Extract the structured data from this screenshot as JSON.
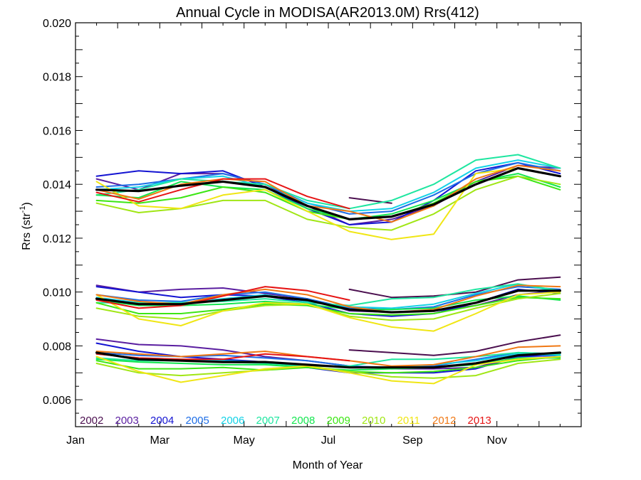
{
  "chart_data": {
    "type": "line",
    "title": "Annual Cycle in MODISA(AR2013.0M) Rrs(412)",
    "xlabel": "Month of Year",
    "ylabel_base": "Rrs (str",
    "ylabel_sup": "-1",
    "ylabel_end": ")",
    "xlim": [
      0,
      12
    ],
    "ylim": [
      0.005,
      0.02
    ],
    "x_ticks": [
      {
        "value": 0,
        "label": "Jan"
      },
      {
        "value": 2,
        "label": "Mar"
      },
      {
        "value": 4,
        "label": "May"
      },
      {
        "value": 6,
        "label": "Jul"
      },
      {
        "value": 8,
        "label": "Sep"
      },
      {
        "value": 10,
        "label": "Nov"
      }
    ],
    "y_ticks": [
      {
        "value": 0.006,
        "label": "0.006"
      },
      {
        "value": 0.008,
        "label": "0.008"
      },
      {
        "value": 0.01,
        "label": "0.010"
      },
      {
        "value": 0.012,
        "label": "0.012"
      },
      {
        "value": 0.014,
        "label": "0.014"
      },
      {
        "value": 0.016,
        "label": "0.016"
      },
      {
        "value": 0.018,
        "label": "0.018"
      },
      {
        "value": 0.02,
        "label": "0.020"
      }
    ],
    "months": [
      0.5,
      1.5,
      2.5,
      3.5,
      4.5,
      5.5,
      6.5,
      7.5,
      8.5,
      9.5,
      10.5,
      11.5
    ],
    "legend_position": "bottom-left",
    "series": [
      {
        "name": "2002",
        "color": "#4b0f4f",
        "groups": [
          [
            null,
            null,
            null,
            null,
            null,
            null,
            0.0135,
            0.0133,
            null,
            null,
            null,
            null
          ],
          [
            null,
            null,
            null,
            null,
            null,
            null,
            0.0101,
            0.0098,
            0.00985,
            0.01,
            0.01045,
            0.01055
          ],
          [
            null,
            null,
            null,
            null,
            null,
            null,
            0.00785,
            0.00775,
            0.00765,
            0.0078,
            0.00815,
            0.0084
          ]
        ]
      },
      {
        "name": "2003",
        "color": "#5a1ea0",
        "groups": [
          [
            0.0142,
            0.0138,
            0.0144,
            0.0144,
            0.014,
            0.0132,
            0.0125,
            0.0127,
            0.0132,
            0.0141,
            0.0147,
            0.0146
          ],
          [
            0.01025,
            0.01,
            0.0101,
            0.01015,
            0.00995,
            0.00975,
            0.0093,
            0.00925,
            0.0093,
            0.0095,
            0.0099,
            0.01005
          ],
          [
            0.00825,
            0.00805,
            0.008,
            0.00785,
            0.0076,
            0.00745,
            0.00725,
            0.00715,
            0.00715,
            0.0072,
            0.0076,
            0.00775
          ]
        ]
      },
      {
        "name": "2004",
        "color": "#1414d2",
        "groups": [
          [
            0.0143,
            0.0145,
            0.0144,
            0.0145,
            0.0139,
            0.0131,
            0.0125,
            0.0126,
            0.0134,
            0.0145,
            0.0148,
            0.0144
          ],
          [
            0.0102,
            0.01,
            0.0098,
            0.0099,
            0.00985,
            0.0096,
            0.0092,
            0.0091,
            0.0092,
            0.0096,
            0.0101,
            0.00995
          ],
          [
            0.0081,
            0.0078,
            0.0076,
            0.0075,
            0.0074,
            0.0072,
            0.007,
            0.007,
            0.007,
            0.00715,
            0.0076,
            0.00765
          ]
        ]
      },
      {
        "name": "2005",
        "color": "#1e6ee6",
        "groups": [
          [
            0.0139,
            0.014,
            0.0142,
            0.0144,
            0.014,
            0.0133,
            0.0129,
            0.013,
            0.0136,
            0.0144,
            0.0148,
            0.0145
          ],
          [
            0.0099,
            0.0097,
            0.00965,
            0.0099,
            0.01,
            0.00975,
            0.0094,
            0.00935,
            0.00945,
            0.0099,
            0.0102,
            0.0101
          ],
          [
            0.00775,
            0.00765,
            0.0076,
            0.00765,
            0.00755,
            0.00745,
            0.00725,
            0.0072,
            0.00725,
            0.0075,
            0.00775,
            0.0077
          ]
        ]
      },
      {
        "name": "2006",
        "color": "#14d2e6",
        "groups": [
          [
            0.0138,
            0.0139,
            0.0142,
            0.0143,
            0.0139,
            0.0133,
            0.013,
            0.0131,
            0.0137,
            0.0146,
            0.0149,
            0.0146
          ],
          [
            0.0098,
            0.0096,
            0.0096,
            0.00975,
            0.0099,
            0.00965,
            0.00945,
            0.0094,
            0.00955,
            0.00995,
            0.0103,
            0.01
          ],
          [
            0.0077,
            0.00755,
            0.0075,
            0.00745,
            0.0074,
            0.0073,
            0.0072,
            0.0072,
            0.0073,
            0.00745,
            0.0077,
            0.00765
          ]
        ]
      },
      {
        "name": "2007",
        "color": "#1ee6a0",
        "groups": [
          [
            0.0136,
            0.0138,
            0.0142,
            0.0141,
            0.014,
            0.0134,
            0.0131,
            0.0134,
            0.014,
            0.0149,
            0.0151,
            0.0146
          ],
          [
            0.0096,
            0.0096,
            0.0096,
            0.00965,
            0.00975,
            0.0096,
            0.0095,
            0.00975,
            0.0098,
            0.0101,
            0.0103,
            0.01005
          ],
          [
            0.00755,
            0.00745,
            0.00745,
            0.0074,
            0.00735,
            0.00725,
            0.00725,
            0.0075,
            0.0075,
            0.0076,
            0.00775,
            0.0077
          ]
        ]
      },
      {
        "name": "2008",
        "color": "#14e650",
        "groups": [
          [
            0.0136,
            0.0135,
            0.0141,
            0.0139,
            0.0138,
            0.0131,
            0.0127,
            0.0129,
            0.0134,
            0.0141,
            0.0144,
            0.0139
          ],
          [
            0.0097,
            0.0095,
            0.0095,
            0.00955,
            0.00965,
            0.00955,
            0.00935,
            0.00935,
            0.0094,
            0.0097,
            0.00985,
            0.0097
          ],
          [
            0.0075,
            0.0074,
            0.00735,
            0.0073,
            0.0073,
            0.0072,
            0.0071,
            0.00715,
            0.0072,
            0.0073,
            0.00755,
            0.00755
          ]
        ]
      },
      {
        "name": "2009",
        "color": "#3ce614",
        "groups": [
          [
            0.0134,
            0.0133,
            0.0135,
            0.0139,
            0.0137,
            0.013,
            0.0127,
            0.0128,
            0.0133,
            0.0141,
            0.0143,
            0.0138
          ],
          [
            0.0096,
            0.0092,
            0.0092,
            0.00935,
            0.00955,
            0.0095,
            0.0092,
            0.00915,
            0.0092,
            0.0095,
            0.0098,
            0.00975
          ],
          [
            0.00745,
            0.00715,
            0.00715,
            0.0072,
            0.0071,
            0.0072,
            0.00705,
            0.007,
            0.00705,
            0.0072,
            0.00745,
            0.0076
          ]
        ]
      },
      {
        "name": "2010",
        "color": "#a0e614",
        "groups": [
          [
            0.0133,
            0.01295,
            0.0131,
            0.0134,
            0.0134,
            0.0127,
            0.0124,
            0.0123,
            0.0129,
            0.0138,
            0.0143,
            0.014
          ],
          [
            0.0094,
            0.0091,
            0.009,
            0.0093,
            0.0095,
            0.00955,
            0.0091,
            0.00895,
            0.009,
            0.0094,
            0.00975,
            0.00995
          ],
          [
            0.00735,
            0.007,
            0.0069,
            0.007,
            0.0071,
            0.00725,
            0.00705,
            0.00685,
            0.0068,
            0.0069,
            0.00735,
            0.0075
          ]
        ]
      },
      {
        "name": "2011",
        "color": "#f0e614",
        "groups": [
          [
            0.0141,
            0.0132,
            0.0131,
            0.0136,
            0.0138,
            0.013,
            0.01225,
            0.01195,
            0.01215,
            0.0144,
            0.0146,
            0.0143
          ],
          [
            0.0099,
            0.009,
            0.00875,
            0.0093,
            0.0096,
            0.00955,
            0.00905,
            0.0087,
            0.00855,
            0.0092,
            0.0099,
            0.01
          ],
          [
            0.0076,
            0.00705,
            0.00665,
            0.0069,
            0.00715,
            0.00725,
            0.007,
            0.0067,
            0.0066,
            0.0073,
            0.0075,
            0.0076
          ]
        ]
      },
      {
        "name": "2012",
        "color": "#f07814",
        "groups": [
          [
            0.0138,
            0.01345,
            0.014,
            0.0142,
            0.0141,
            0.0132,
            0.013,
            0.0126,
            0.0132,
            0.0142,
            0.0147,
            0.0145
          ],
          [
            0.0099,
            0.00965,
            0.00955,
            0.0099,
            0.0101,
            0.0099,
            0.00945,
            0.00925,
            0.00935,
            0.00985,
            0.01025,
            0.0102
          ],
          [
            0.0078,
            0.0077,
            0.0076,
            0.0077,
            0.0078,
            0.0076,
            0.00745,
            0.00725,
            0.0073,
            0.0076,
            0.00795,
            0.008
          ]
        ]
      },
      {
        "name": "2013",
        "color": "#e61414",
        "groups": [
          [
            0.0137,
            0.01335,
            0.0138,
            0.0142,
            0.0142,
            0.01355,
            0.0131,
            null,
            null,
            null,
            null,
            null
          ],
          [
            0.0097,
            0.0094,
            0.0095,
            0.00985,
            0.0102,
            0.01005,
            0.0097,
            null,
            null,
            null,
            null,
            null
          ],
          [
            0.0077,
            0.00755,
            0.0075,
            0.0075,
            0.0077,
            0.0076,
            0.00745,
            null,
            null,
            null,
            null,
            null
          ]
        ]
      },
      {
        "name": "",
        "color": "#000000",
        "mean": true,
        "groups": [
          [
            0.0138,
            0.01375,
            0.01395,
            0.0141,
            0.0139,
            0.0132,
            0.0127,
            0.0128,
            0.01325,
            0.014,
            0.0146,
            0.0143
          ],
          [
            0.00975,
            0.00955,
            0.00955,
            0.0097,
            0.00985,
            0.0097,
            0.00935,
            0.00925,
            0.0093,
            0.0096,
            0.01005,
            0.01005
          ],
          [
            0.00775,
            0.0075,
            0.00745,
            0.0074,
            0.0074,
            0.0073,
            0.0072,
            0.0072,
            0.0072,
            0.00735,
            0.00765,
            0.00775
          ]
        ]
      }
    ]
  }
}
